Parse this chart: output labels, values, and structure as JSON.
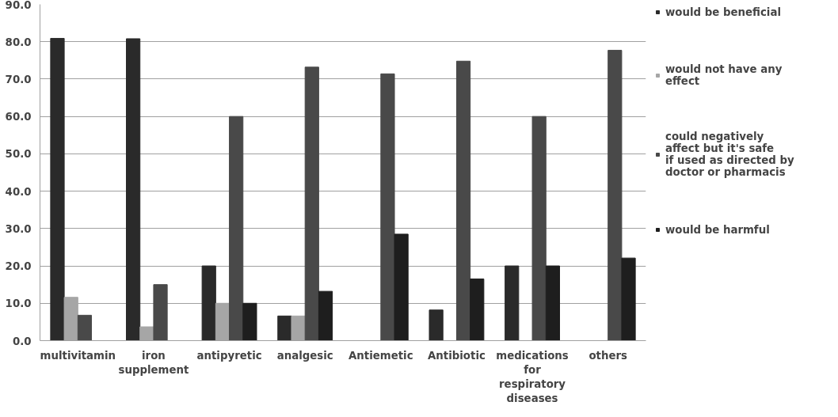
{
  "chart_data": {
    "type": "bar",
    "categories": [
      "multivitamin",
      "iron supplement",
      "antipyretic",
      "analgesic",
      "Antiemetic",
      "Antibiotic",
      "medications for respiratory diseases",
      "others"
    ],
    "series": [
      {
        "name": "would be beneficial",
        "color": "#2a2a2a",
        "values": [
          80.9,
          80.8,
          20.0,
          6.6,
          null,
          8.2,
          20.0,
          null
        ]
      },
      {
        "name": "would not have any effect",
        "color": "#a6a6a6",
        "values": [
          11.6,
          3.7,
          10.0,
          6.6,
          null,
          null,
          null,
          null
        ]
      },
      {
        "name": "could negatively affect but it's safe if used as directed by doctor or pharmacis",
        "color": "#494949",
        "values": [
          6.8,
          15.0,
          60.0,
          73.2,
          71.4,
          74.8,
          60.0,
          77.7
        ]
      },
      {
        "name": "would be harmful",
        "color": "#1e1e1e",
        "values": [
          null,
          null,
          10.0,
          13.2,
          28.5,
          16.5,
          20.0,
          22.1
        ]
      }
    ],
    "ylim": [
      0,
      90
    ],
    "yticks": [
      {
        "value": 0,
        "label": "0.0"
      },
      {
        "value": 10,
        "label": "10.0"
      },
      {
        "value": 20,
        "label": "20.0"
      },
      {
        "value": 30,
        "label": "30.0"
      },
      {
        "value": 40,
        "label": "40.0"
      },
      {
        "value": 50,
        "label": "50.0"
      },
      {
        "value": 60,
        "label": "60.0"
      },
      {
        "value": 70,
        "label": "70.0"
      },
      {
        "value": 80,
        "label": "80.0"
      },
      {
        "value": 90,
        "label": "90.0"
      }
    ],
    "grid": "y",
    "legend": "right"
  }
}
